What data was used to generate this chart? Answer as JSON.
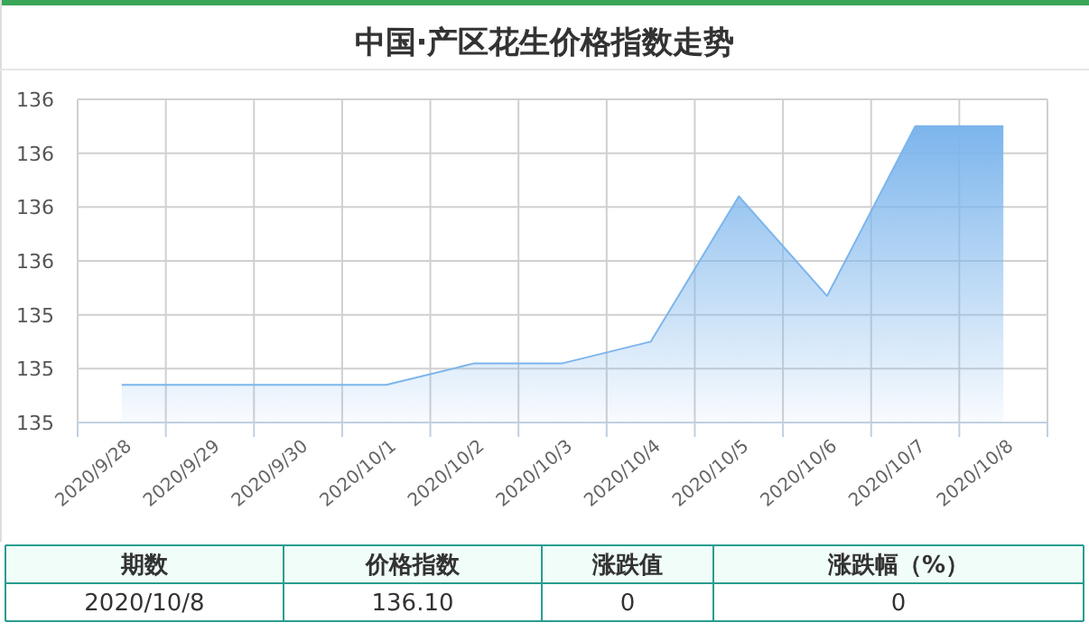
{
  "chart_data": {
    "type": "area",
    "title": "中国·产区花生价格指数走势",
    "categories": [
      "2020/9/28",
      "2020/9/29",
      "2020/9/30",
      "2020/10/1",
      "2020/10/2",
      "2020/10/3",
      "2020/10/4",
      "2020/10/5",
      "2020/10/6",
      "2020/10/7",
      "2020/10/8"
    ],
    "values": [
      135.14,
      135.14,
      135.14,
      135.14,
      135.22,
      135.22,
      135.3,
      135.84,
      135.47,
      136.1,
      136.1
    ],
    "color": "#7cb5ec",
    "ylim": [
      135.0,
      136.2
    ],
    "yticks": [
      {
        "value": 135.0,
        "label": "135"
      },
      {
        "value": 135.2,
        "label": "135"
      },
      {
        "value": 135.4,
        "label": "135"
      },
      {
        "value": 135.6,
        "label": "136"
      },
      {
        "value": 135.8,
        "label": "136"
      },
      {
        "value": 136.0,
        "label": "136"
      },
      {
        "value": 136.2,
        "label": "136"
      }
    ],
    "grid": true,
    "annotations": [
      "期数",
      "价格指数",
      "涨跌值",
      "涨跌幅（%）",
      "2020/10/8",
      "136.10",
      "0",
      "0"
    ]
  }
}
